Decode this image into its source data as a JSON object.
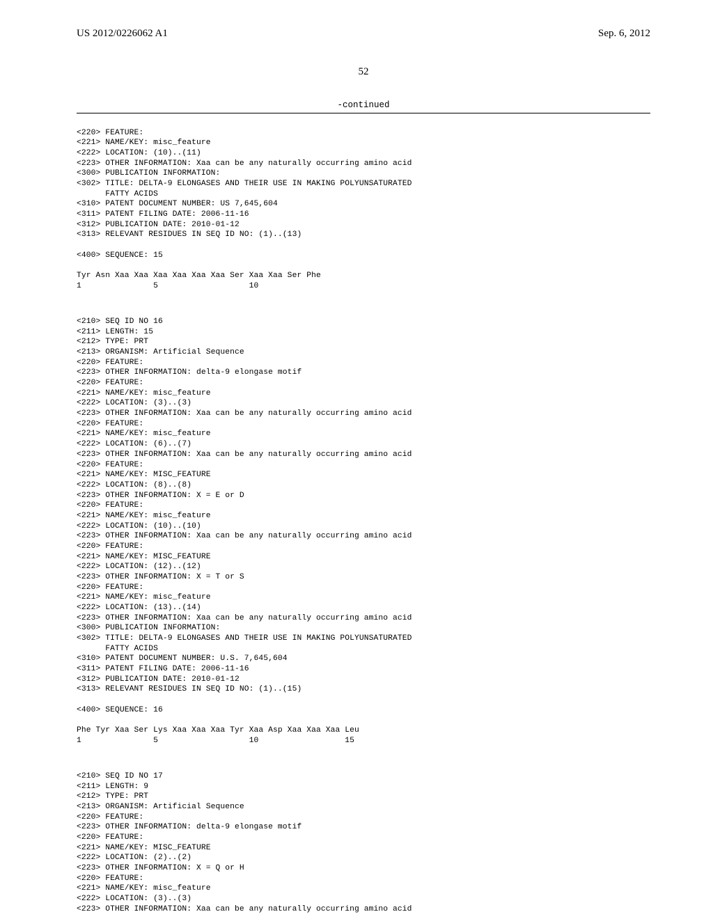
{
  "header": {
    "left": "US 2012/0226062 A1",
    "right": "Sep. 6, 2012"
  },
  "page_number": "52",
  "continued_label": "-continued",
  "block1": {
    "lines": [
      "<220> FEATURE:",
      "<221> NAME/KEY: misc_feature",
      "<222> LOCATION: (10)..(11)",
      "<223> OTHER INFORMATION: Xaa can be any naturally occurring amino acid",
      "<300> PUBLICATION INFORMATION:",
      "<302> TITLE: DELTA-9 ELONGASES AND THEIR USE IN MAKING POLYUNSATURATED",
      "      FATTY ACIDS",
      "<310> PATENT DOCUMENT NUMBER: US 7,645,604",
      "<311> PATENT FILING DATE: 2006-11-16",
      "<312> PUBLICATION DATE: 2010-01-12",
      "<313> RELEVANT RESIDUES IN SEQ ID NO: (1)..(13)"
    ],
    "seq_header": "<400> SEQUENCE: 15",
    "seq_line": "Tyr Asn Xaa Xaa Xaa Xaa Xaa Xaa Ser Xaa Xaa Ser Phe",
    "num_line": "1               5                   10"
  },
  "block2": {
    "lines": [
      "<210> SEQ ID NO 16",
      "<211> LENGTH: 15",
      "<212> TYPE: PRT",
      "<213> ORGANISM: Artificial Sequence",
      "<220> FEATURE:",
      "<223> OTHER INFORMATION: delta-9 elongase motif",
      "<220> FEATURE:",
      "<221> NAME/KEY: misc_feature",
      "<222> LOCATION: (3)..(3)",
      "<223> OTHER INFORMATION: Xaa can be any naturally occurring amino acid",
      "<220> FEATURE:",
      "<221> NAME/KEY: misc_feature",
      "<222> LOCATION: (6)..(7)",
      "<223> OTHER INFORMATION: Xaa can be any naturally occurring amino acid",
      "<220> FEATURE:",
      "<221> NAME/KEY: MISC_FEATURE",
      "<222> LOCATION: (8)..(8)",
      "<223> OTHER INFORMATION: X = E or D",
      "<220> FEATURE:",
      "<221> NAME/KEY: misc_feature",
      "<222> LOCATION: (10)..(10)",
      "<223> OTHER INFORMATION: Xaa can be any naturally occurring amino acid",
      "<220> FEATURE:",
      "<221> NAME/KEY: MISC_FEATURE",
      "<222> LOCATION: (12)..(12)",
      "<223> OTHER INFORMATION: X = T or S",
      "<220> FEATURE:",
      "<221> NAME/KEY: misc_feature",
      "<222> LOCATION: (13)..(14)",
      "<223> OTHER INFORMATION: Xaa can be any naturally occurring amino acid",
      "<300> PUBLICATION INFORMATION:",
      "<302> TITLE: DELTA-9 ELONGASES AND THEIR USE IN MAKING POLYUNSATURATED",
      "      FATTY ACIDS",
      "<310> PATENT DOCUMENT NUMBER: U.S. 7,645,604",
      "<311> PATENT FILING DATE: 2006-11-16",
      "<312> PUBLICATION DATE: 2010-01-12",
      "<313> RELEVANT RESIDUES IN SEQ ID NO: (1)..(15)"
    ],
    "seq_header": "<400> SEQUENCE: 16",
    "seq_line": "Phe Tyr Xaa Ser Lys Xaa Xaa Xaa Tyr Xaa Asp Xaa Xaa Xaa Leu",
    "num_line": "1               5                   10                  15"
  },
  "block3": {
    "lines": [
      "<210> SEQ ID NO 17",
      "<211> LENGTH: 9",
      "<212> TYPE: PRT",
      "<213> ORGANISM: Artificial Sequence",
      "<220> FEATURE:",
      "<223> OTHER INFORMATION: delta-9 elongase motif",
      "<220> FEATURE:",
      "<221> NAME/KEY: MISC_FEATURE",
      "<222> LOCATION: (2)..(2)",
      "<223> OTHER INFORMATION: X = Q or H",
      "<220> FEATURE:",
      "<221> NAME/KEY: misc_feature",
      "<222> LOCATION: (3)..(3)",
      "<223> OTHER INFORMATION: Xaa can be any naturally occurring amino acid"
    ]
  }
}
